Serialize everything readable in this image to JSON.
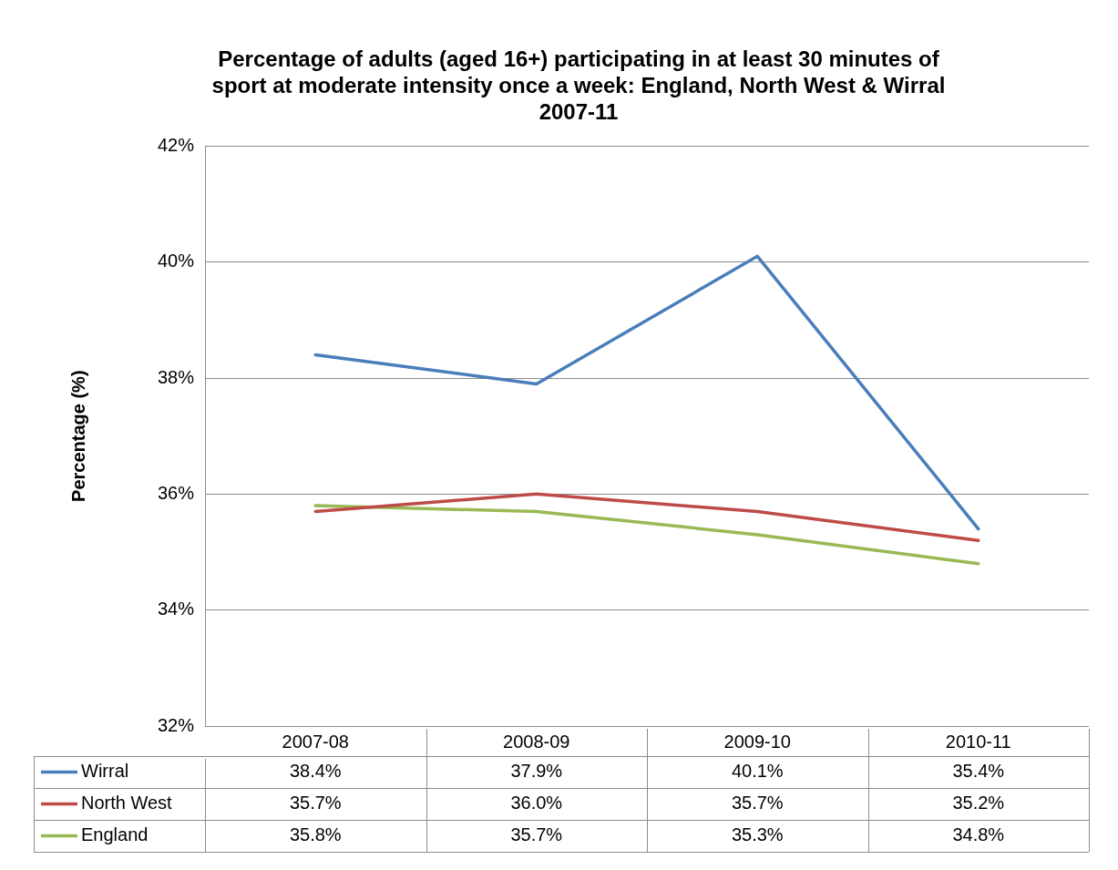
{
  "chart_data": {
    "type": "line",
    "title": "Percentage of adults (aged 16+) participating in at least 30 minutes of sport at moderate intensity once a week: England, North West & Wirral 2007-11",
    "ylabel": "Percentage (%)",
    "categories": [
      "2007-08",
      "2008-09",
      "2009-10",
      "2010-11"
    ],
    "series": [
      {
        "name": "Wirral",
        "color": "#4a7ebb",
        "values": [
          38.4,
          37.9,
          40.1,
          35.4
        ],
        "value_labels": [
          "38.4%",
          "37.9%",
          "40.1%",
          "35.4%"
        ]
      },
      {
        "name": "North West",
        "color": "#be4b48",
        "values": [
          35.7,
          36.0,
          35.7,
          35.2
        ],
        "value_labels": [
          "35.7%",
          "36.0%",
          "35.7%",
          "35.2%"
        ]
      },
      {
        "name": "England",
        "color": "#98b954",
        "values": [
          35.8,
          35.7,
          35.3,
          34.8
        ],
        "value_labels": [
          "35.8%",
          "35.7%",
          "35.3%",
          "34.8%"
        ]
      }
    ],
    "ylim": [
      32,
      42
    ],
    "yticks": [
      {
        "value": 32,
        "label": "32%"
      },
      {
        "value": 34,
        "label": "34%"
      },
      {
        "value": 36,
        "label": "36%"
      },
      {
        "value": 38,
        "label": "38%"
      },
      {
        "value": 40,
        "label": "40%"
      },
      {
        "value": 42,
        "label": "42%"
      }
    ],
    "grid": "y",
    "legend": "bottom",
    "marker": "none",
    "line_style": "solid"
  }
}
